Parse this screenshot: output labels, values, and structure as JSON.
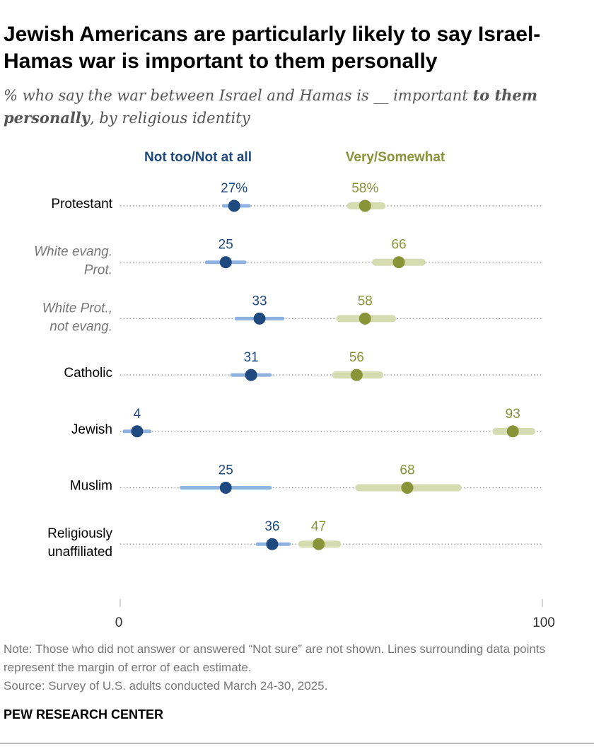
{
  "title": "Jewish Americans are particularly likely to say Israel-Hamas war is important to them personally",
  "subtitle": {
    "part1": "% who say the war between Israel and Hamas is __ important ",
    "bold": "to them personally",
    "part2": ", by religious identity"
  },
  "note": "Note: Those who did not answer or answered “Not sure” are not shown. Lines surrounding data points represent the margin of error of each estimate.",
  "source": "Source: Survey of U.S. adults conducted March 24-30, 2025.",
  "brand": "PEW RESEARCH CENTER",
  "colors": {
    "not_dot": "#1f4a7f",
    "not_band": "#8fb3e0",
    "very_dot": "#879438",
    "very_band": "#d6dcb2",
    "not_label": "#1f4a7f",
    "very_label": "#879438",
    "dotted": "#9a9a9a",
    "italic_label": "#777777"
  },
  "chart_data": {
    "type": "dot_plot",
    "xlim": [
      0,
      100
    ],
    "xticks": [
      0,
      100
    ],
    "series": [
      {
        "name": "Not too/Not at all",
        "key": "not"
      },
      {
        "name": "Very/Somewhat",
        "key": "very"
      }
    ],
    "rows": [
      {
        "lines": [
          "Protestant"
        ],
        "italic": false,
        "not": {
          "value": 27,
          "label": "27%",
          "lo": 24.5,
          "hi": 30.5
        },
        "very": {
          "value": 58,
          "label": "58%",
          "lo": 54.5,
          "hi": 62
        }
      },
      {
        "lines": [
          "White evang.",
          "Prot."
        ],
        "italic": true,
        "not": {
          "value": 25,
          "label": "25",
          "lo": 20.5,
          "hi": 29.5
        },
        "very": {
          "value": 66,
          "label": "66",
          "lo": 60.5,
          "hi": 71.5
        }
      },
      {
        "lines": [
          "White Prot.,",
          "not evang."
        ],
        "italic": true,
        "not": {
          "value": 33,
          "label": "33",
          "lo": 27.5,
          "hi": 38.5
        },
        "very": {
          "value": 58,
          "label": "58",
          "lo": 52,
          "hi": 64.5
        }
      },
      {
        "lines": [
          "Catholic"
        ],
        "italic": false,
        "not": {
          "value": 31,
          "label": "31",
          "lo": 26.5,
          "hi": 35.5
        },
        "very": {
          "value": 56,
          "label": "56",
          "lo": 51,
          "hi": 61.5
        }
      },
      {
        "lines": [
          "Jewish"
        ],
        "italic": false,
        "not": {
          "value": 4,
          "label": "4",
          "lo": 1,
          "hi": 7
        },
        "very": {
          "value": 93,
          "label": "93",
          "lo": 89,
          "hi": 97.5
        }
      },
      {
        "lines": [
          "Muslim"
        ],
        "italic": false,
        "not": {
          "value": 25,
          "label": "25",
          "lo": 14.5,
          "hi": 35.5
        },
        "very": {
          "value": 68,
          "label": "68",
          "lo": 56.5,
          "hi": 80
        }
      },
      {
        "lines": [
          "Religiously",
          "unaffiliated"
        ],
        "italic": false,
        "not": {
          "value": 36,
          "label": "36",
          "lo": 32.5,
          "hi": 40
        },
        "very": {
          "value": 47,
          "label": "47",
          "lo": 43,
          "hi": 51.5
        }
      }
    ]
  }
}
